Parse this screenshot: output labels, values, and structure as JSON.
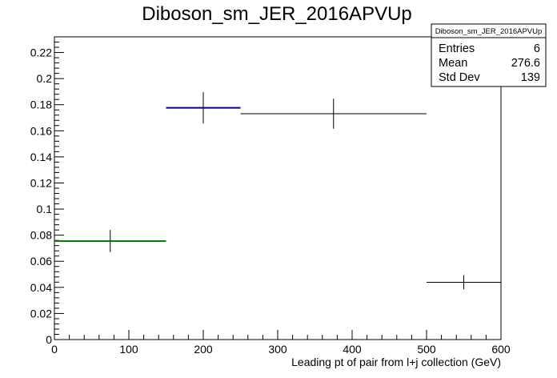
{
  "chart_data": {
    "type": "histogram",
    "title": "Diboson_sm_JER_2016APVUp",
    "xlabel": "Leading pt of pair from l+j collection (GeV)",
    "ylabel": "",
    "xlim": [
      0,
      600
    ],
    "ylim": [
      0,
      0.232
    ],
    "x_ticks": [
      "0",
      "100",
      "200",
      "300",
      "400",
      "500",
      "600"
    ],
    "y_ticks": [
      "0",
      "0.02",
      "0.04",
      "0.06",
      "0.08",
      "0.1",
      "0.12",
      "0.14",
      "0.16",
      "0.18",
      "0.2",
      "0.22"
    ],
    "bins": [
      {
        "x_low": 0,
        "x_high": 150,
        "x_center": 75,
        "value": 0.0755,
        "error": 0.0085,
        "color": "#007f00"
      },
      {
        "x_low": 150,
        "x_high": 250,
        "x_center": 200,
        "value": 0.1776,
        "error": 0.012,
        "color": "#00007f"
      },
      {
        "x_low": 250,
        "x_high": 500,
        "x_center": 375,
        "value": 0.1731,
        "error": 0.0115,
        "color": "#000000"
      },
      {
        "x_low": 500,
        "x_high": 600,
        "x_center": 550,
        "value": 0.0439,
        "error": 0.0055,
        "color": "#000000"
      }
    ],
    "stats_box": {
      "title": "Diboson_sm_JER_2016APVUp",
      "rows": [
        {
          "label": "Entries",
          "value": "6"
        },
        {
          "label": "Mean",
          "value": "276.6"
        },
        {
          "label": "Std Dev",
          "value": "139"
        }
      ]
    },
    "grid": false,
    "legend": "none"
  }
}
